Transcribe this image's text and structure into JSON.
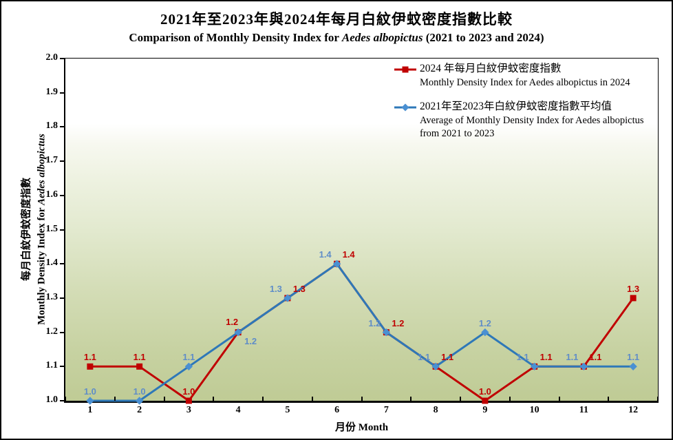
{
  "header": {
    "title_zh": "2021年至2023年與2024年每月白紋伊蚊密度指數比較",
    "title_en_prefix": "Comparison of Monthly Density Index for ",
    "title_en_italic": "Aedes albopictus",
    "title_en_suffix": " (2021 to 2023 and 2024)"
  },
  "axes": {
    "y_title_zh": "每月白紋伊蚊密度指數",
    "y_title_en_prefix": "Monthly Density Index for ",
    "y_title_en_italic": "Aedes albopictus",
    "x_title": "月份 Month"
  },
  "chart_data": {
    "type": "line",
    "categories": [
      "1",
      "2",
      "3",
      "4",
      "5",
      "6",
      "7",
      "8",
      "9",
      "10",
      "11",
      "12"
    ],
    "series": [
      {
        "name_zh": "2024 年每月白紋伊蚊密度指數",
        "name_en": "Monthly Density Index for Aedes albopictus in 2024",
        "marker": "square",
        "line_color": "#c00000",
        "marker_color": "#c00000",
        "label_color": "#c00000",
        "values": [
          1.1,
          1.1,
          1.0,
          1.2,
          1.3,
          1.4,
          1.2,
          1.1,
          1.0,
          1.1,
          1.1,
          1.3
        ]
      },
      {
        "name_zh": "2021年至2023年白紋伊蚊密度指數平均值",
        "name_en": "Average of Monthly Density Index for Aedes albopictus from 2021 to 2023",
        "marker": "diamond",
        "line_color": "#2e78b8",
        "marker_color": "#4a90d2",
        "label_color": "#5f8dc8",
        "values": [
          1.0,
          1.0,
          1.1,
          1.2,
          1.3,
          1.4,
          1.2,
          1.1,
          1.2,
          1.1,
          1.1,
          1.1
        ]
      }
    ],
    "ylim": [
      1.0,
      2.0
    ],
    "ytick_step": 0.1,
    "ytick_labels": [
      "1.0",
      "1.1",
      "1.2",
      "1.3",
      "1.4",
      "1.5",
      "1.6",
      "1.7",
      "1.8",
      "1.9",
      "2.0"
    ],
    "xlabel": "月份 Month",
    "grid": false,
    "legend_position": "top-right",
    "plot_background": {
      "top_color": "#ffffff",
      "bottom_color": "#bfcb95"
    }
  }
}
